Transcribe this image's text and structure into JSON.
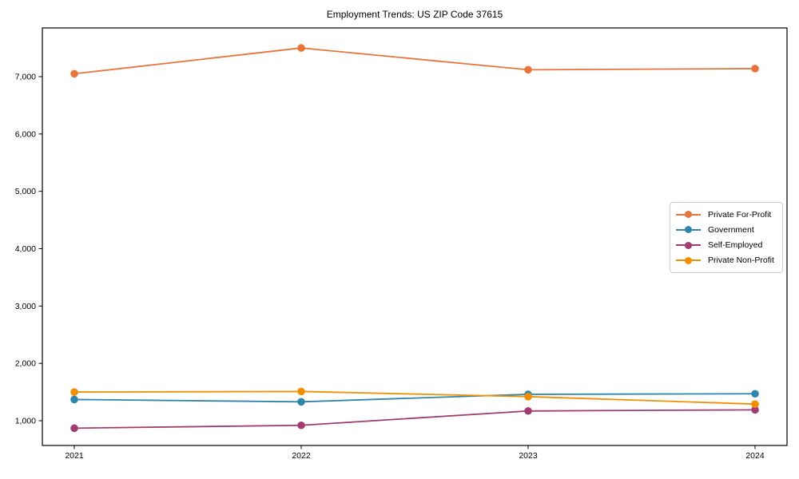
{
  "title": "Employment Trends: US ZIP Code 37615",
  "chart_data": {
    "type": "line",
    "title": "Employment Trends: US ZIP Code 37615",
    "xlabel": "",
    "ylabel": "",
    "x": [
      2021,
      2022,
      2023,
      2024
    ],
    "x_tick_labels": [
      "2021",
      "2022",
      "2023",
      "2024"
    ],
    "y_ticks": [
      1000,
      2000,
      3000,
      4000,
      5000,
      6000,
      7000
    ],
    "y_tick_labels": [
      "1,000",
      "2,000",
      "3,000",
      "4,000",
      "5,000",
      "6,000",
      "7,000"
    ],
    "ylim": [
      540,
      7840
    ],
    "grid": false,
    "marker": "circle",
    "legend_position": "center right",
    "series": [
      {
        "name": "Private For-Profit",
        "color": "#E8743B",
        "values": [
          7050,
          7500,
          7120,
          7140
        ]
      },
      {
        "name": "Government",
        "color": "#2E86AB",
        "values": [
          1370,
          1330,
          1460,
          1470
        ]
      },
      {
        "name": "Self-Employed",
        "color": "#A23B72",
        "values": [
          870,
          920,
          1170,
          1190
        ]
      },
      {
        "name": "Private Non-Profit",
        "color": "#F18F01",
        "values": [
          1500,
          1510,
          1420,
          1290
        ]
      }
    ]
  }
}
